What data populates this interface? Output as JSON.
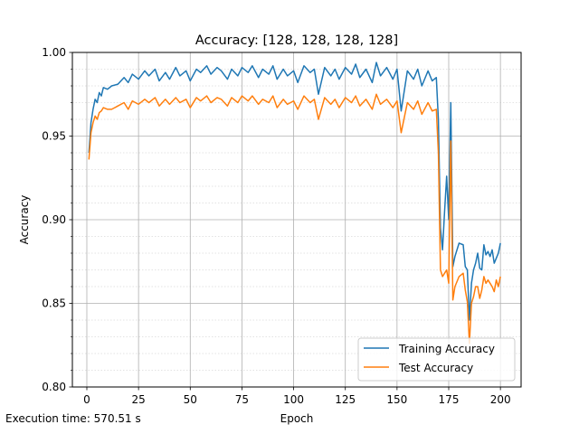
{
  "chart_data": {
    "type": "line",
    "title": "Accuracy: [128, 128, 128, 128]",
    "xlabel": "Epoch",
    "ylabel": "Accuracy",
    "xlim": [
      -7,
      210
    ],
    "ylim": [
      0.8,
      1.0
    ],
    "xticks": [
      0,
      25,
      50,
      75,
      100,
      125,
      150,
      175,
      200
    ],
    "yticks": [
      0.8,
      0.85,
      0.9,
      0.95,
      1.0
    ],
    "ytick_labels": [
      "0.80",
      "0.85",
      "0.90",
      "0.95",
      "1.00"
    ],
    "grid": {
      "major": true,
      "minor": true
    },
    "legend_position": "lower-right",
    "footer_text": "Execution time: 570.51 s",
    "series": [
      {
        "name": "Training Accuracy",
        "color": "#1f77b4",
        "points": [
          [
            1,
            0.94
          ],
          [
            2,
            0.958
          ],
          [
            3,
            0.966
          ],
          [
            4,
            0.972
          ],
          [
            5,
            0.97
          ],
          [
            6,
            0.976
          ],
          [
            7,
            0.974
          ],
          [
            8,
            0.979
          ],
          [
            10,
            0.978
          ],
          [
            12,
            0.98
          ],
          [
            15,
            0.981
          ],
          [
            18,
            0.985
          ],
          [
            20,
            0.982
          ],
          [
            22,
            0.987
          ],
          [
            25,
            0.984
          ],
          [
            28,
            0.989
          ],
          [
            30,
            0.986
          ],
          [
            33,
            0.99
          ],
          [
            35,
            0.983
          ],
          [
            38,
            0.988
          ],
          [
            40,
            0.984
          ],
          [
            43,
            0.991
          ],
          [
            45,
            0.986
          ],
          [
            48,
            0.989
          ],
          [
            50,
            0.983
          ],
          [
            53,
            0.99
          ],
          [
            55,
            0.988
          ],
          [
            58,
            0.992
          ],
          [
            60,
            0.987
          ],
          [
            63,
            0.991
          ],
          [
            65,
            0.989
          ],
          [
            68,
            0.984
          ],
          [
            70,
            0.99
          ],
          [
            73,
            0.986
          ],
          [
            75,
            0.991
          ],
          [
            78,
            0.988
          ],
          [
            80,
            0.992
          ],
          [
            83,
            0.985
          ],
          [
            85,
            0.99
          ],
          [
            88,
            0.987
          ],
          [
            90,
            0.992
          ],
          [
            92,
            0.984
          ],
          [
            95,
            0.99
          ],
          [
            97,
            0.986
          ],
          [
            100,
            0.989
          ],
          [
            102,
            0.982
          ],
          [
            105,
            0.992
          ],
          [
            108,
            0.988
          ],
          [
            110,
            0.99
          ],
          [
            112,
            0.975
          ],
          [
            115,
            0.991
          ],
          [
            118,
            0.986
          ],
          [
            120,
            0.99
          ],
          [
            122,
            0.984
          ],
          [
            125,
            0.991
          ],
          [
            128,
            0.987
          ],
          [
            130,
            0.993
          ],
          [
            132,
            0.985
          ],
          [
            135,
            0.99
          ],
          [
            138,
            0.982
          ],
          [
            140,
            0.994
          ],
          [
            142,
            0.986
          ],
          [
            145,
            0.991
          ],
          [
            148,
            0.984
          ],
          [
            150,
            0.99
          ],
          [
            152,
            0.965
          ],
          [
            155,
            0.989
          ],
          [
            158,
            0.984
          ],
          [
            160,
            0.99
          ],
          [
            162,
            0.98
          ],
          [
            165,
            0.989
          ],
          [
            167,
            0.983
          ],
          [
            169,
            0.985
          ],
          [
            170,
            0.96
          ],
          [
            171,
            0.895
          ],
          [
            172,
            0.882
          ],
          [
            173,
            0.905
          ],
          [
            174,
            0.926
          ],
          [
            175,
            0.9
          ],
          [
            176,
            0.97
          ],
          [
            177,
            0.872
          ],
          [
            178,
            0.878
          ],
          [
            180,
            0.886
          ],
          [
            182,
            0.885
          ],
          [
            183,
            0.872
          ],
          [
            184,
            0.87
          ],
          [
            185,
            0.84
          ],
          [
            186,
            0.862
          ],
          [
            187,
            0.87
          ],
          [
            188,
            0.874
          ],
          [
            189,
            0.88
          ],
          [
            190,
            0.871
          ],
          [
            191,
            0.87
          ],
          [
            192,
            0.885
          ],
          [
            193,
            0.879
          ],
          [
            194,
            0.881
          ],
          [
            195,
            0.878
          ],
          [
            196,
            0.882
          ],
          [
            197,
            0.874
          ],
          [
            198,
            0.877
          ],
          [
            199,
            0.88
          ],
          [
            200,
            0.886
          ]
        ]
      },
      {
        "name": "Test Accuracy",
        "color": "#ff7f0e",
        "points": [
          [
            1,
            0.936
          ],
          [
            2,
            0.952
          ],
          [
            3,
            0.958
          ],
          [
            4,
            0.962
          ],
          [
            5,
            0.96
          ],
          [
            6,
            0.964
          ],
          [
            7,
            0.965
          ],
          [
            8,
            0.967
          ],
          [
            10,
            0.966
          ],
          [
            12,
            0.966
          ],
          [
            15,
            0.968
          ],
          [
            18,
            0.97
          ],
          [
            20,
            0.966
          ],
          [
            22,
            0.971
          ],
          [
            25,
            0.969
          ],
          [
            28,
            0.972
          ],
          [
            30,
            0.97
          ],
          [
            33,
            0.973
          ],
          [
            35,
            0.968
          ],
          [
            38,
            0.972
          ],
          [
            40,
            0.969
          ],
          [
            43,
            0.973
          ],
          [
            45,
            0.97
          ],
          [
            48,
            0.972
          ],
          [
            50,
            0.967
          ],
          [
            53,
            0.973
          ],
          [
            55,
            0.971
          ],
          [
            58,
            0.974
          ],
          [
            60,
            0.97
          ],
          [
            63,
            0.973
          ],
          [
            65,
            0.972
          ],
          [
            68,
            0.968
          ],
          [
            70,
            0.973
          ],
          [
            73,
            0.97
          ],
          [
            75,
            0.974
          ],
          [
            78,
            0.971
          ],
          [
            80,
            0.974
          ],
          [
            83,
            0.969
          ],
          [
            85,
            0.972
          ],
          [
            88,
            0.97
          ],
          [
            90,
            0.974
          ],
          [
            92,
            0.967
          ],
          [
            95,
            0.972
          ],
          [
            97,
            0.969
          ],
          [
            100,
            0.971
          ],
          [
            102,
            0.966
          ],
          [
            105,
            0.974
          ],
          [
            108,
            0.97
          ],
          [
            110,
            0.972
          ],
          [
            112,
            0.96
          ],
          [
            115,
            0.973
          ],
          [
            118,
            0.969
          ],
          [
            120,
            0.972
          ],
          [
            122,
            0.967
          ],
          [
            125,
            0.973
          ],
          [
            128,
            0.97
          ],
          [
            130,
            0.974
          ],
          [
            132,
            0.968
          ],
          [
            135,
            0.972
          ],
          [
            138,
            0.966
          ],
          [
            140,
            0.975
          ],
          [
            142,
            0.969
          ],
          [
            145,
            0.972
          ],
          [
            148,
            0.967
          ],
          [
            150,
            0.971
          ],
          [
            152,
            0.952
          ],
          [
            155,
            0.97
          ],
          [
            158,
            0.966
          ],
          [
            160,
            0.971
          ],
          [
            162,
            0.963
          ],
          [
            165,
            0.97
          ],
          [
            167,
            0.965
          ],
          [
            169,
            0.966
          ],
          [
            170,
            0.94
          ],
          [
            171,
            0.87
          ],
          [
            172,
            0.866
          ],
          [
            173,
            0.868
          ],
          [
            174,
            0.87
          ],
          [
            175,
            0.862
          ],
          [
            176,
            0.947
          ],
          [
            177,
            0.852
          ],
          [
            178,
            0.86
          ],
          [
            180,
            0.866
          ],
          [
            182,
            0.868
          ],
          [
            183,
            0.858
          ],
          [
            184,
            0.851
          ],
          [
            185,
            0.826
          ],
          [
            186,
            0.85
          ],
          [
            187,
            0.854
          ],
          [
            188,
            0.86
          ],
          [
            189,
            0.86
          ],
          [
            190,
            0.853
          ],
          [
            191,
            0.858
          ],
          [
            192,
            0.866
          ],
          [
            193,
            0.862
          ],
          [
            194,
            0.864
          ],
          [
            195,
            0.862
          ],
          [
            196,
            0.86
          ],
          [
            197,
            0.857
          ],
          [
            198,
            0.864
          ],
          [
            199,
            0.86
          ],
          [
            200,
            0.866
          ]
        ]
      }
    ]
  }
}
